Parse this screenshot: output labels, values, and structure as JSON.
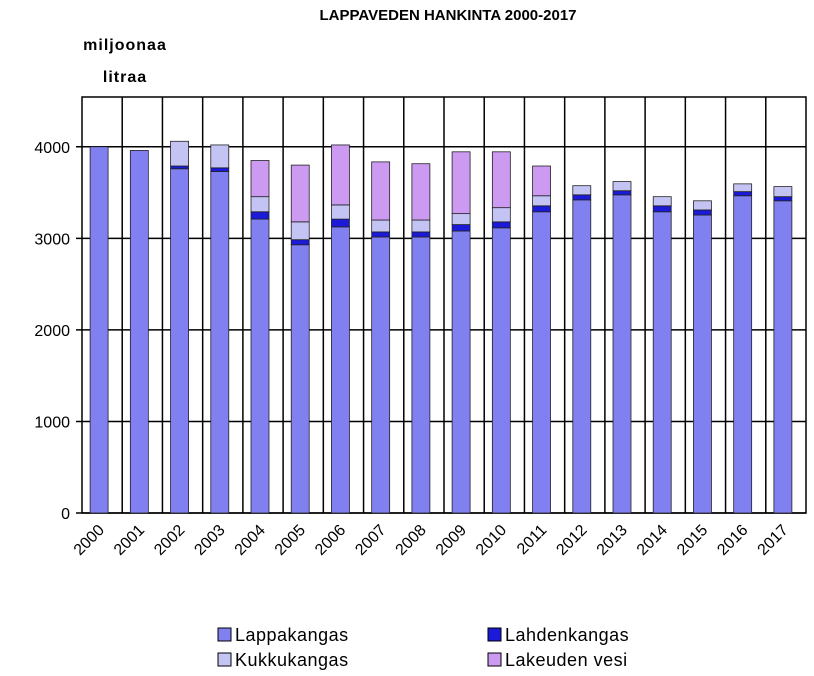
{
  "chart_data": {
    "type": "stacked_bar",
    "title": "LAPPAVEDEN HANKINTA 2000-2017",
    "y_label": "miljoonaa litraa",
    "categories": [
      "2000",
      "2001",
      "2002",
      "2003",
      "2004",
      "2005",
      "2006",
      "2007",
      "2008",
      "2009",
      "2010",
      "2011",
      "2012",
      "2013",
      "2014",
      "2015",
      "2016",
      "2017"
    ],
    "series": [
      {
        "name": "Lappakangas",
        "color": "#8080f0",
        "values": [
          4000,
          3960,
          3760,
          3730,
          3210,
          2930,
          3125,
          3015,
          3015,
          3080,
          3115,
          3290,
          3420,
          3475,
          3290,
          3255,
          3465,
          3410
        ]
      },
      {
        "name": "Lahdenkangas",
        "color": "#1a1ad8",
        "values": [
          0,
          0,
          30,
          40,
          80,
          55,
          85,
          55,
          55,
          70,
          65,
          65,
          55,
          45,
          65,
          55,
          45,
          45
        ]
      },
      {
        "name": "Kukkukangas",
        "color": "#c4c4f4",
        "values": [
          0,
          0,
          270,
          250,
          165,
          195,
          155,
          130,
          130,
          120,
          155,
          110,
          100,
          100,
          100,
          100,
          85,
          110
        ]
      },
      {
        "name": "Lakeuden vesi",
        "color": "#cc9af0",
        "values": [
          0,
          0,
          0,
          0,
          395,
          620,
          655,
          635,
          615,
          675,
          610,
          325,
          0,
          0,
          0,
          0,
          0,
          0
        ]
      }
    ],
    "ylim": [
      0,
      4500
    ],
    "yticks": [
      0,
      1000,
      2000,
      3000,
      4000
    ],
    "grid": true
  }
}
